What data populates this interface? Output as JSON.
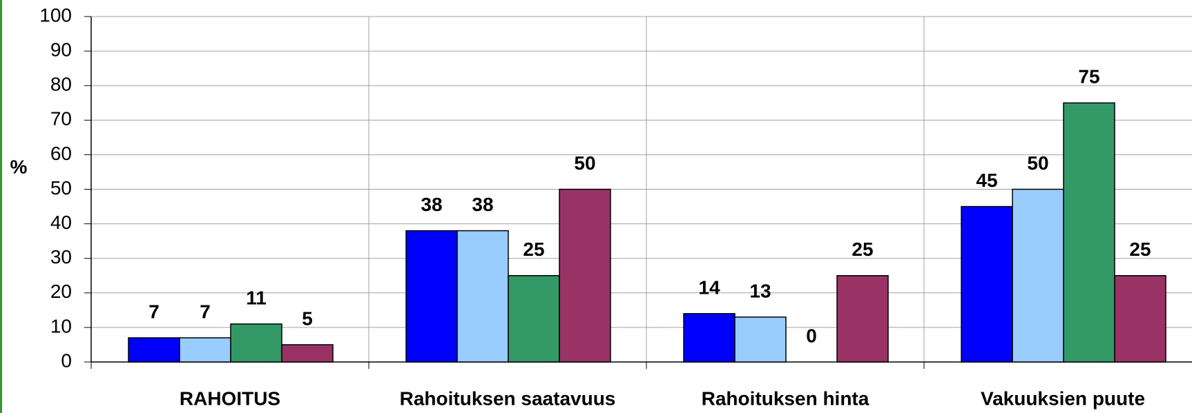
{
  "chart_data": {
    "type": "bar",
    "y_label": "%",
    "categories": [
      "RAHOITUS",
      "Rahoituksen saatavuus",
      "Rahoituksen hinta",
      "Vakuuksien puute"
    ],
    "series": [
      {
        "color": "#0000ff",
        "values": [
          7,
          38,
          14,
          45
        ]
      },
      {
        "color": "#99ccff",
        "values": [
          7,
          38,
          13,
          50
        ]
      },
      {
        "color": "#339966",
        "values": [
          11,
          25,
          0,
          75
        ]
      },
      {
        "color": "#993366",
        "values": [
          5,
          50,
          25,
          25
        ]
      }
    ],
    "ylim": [
      0,
      100
    ],
    "yticks": [
      0,
      10,
      20,
      30,
      40,
      50,
      60,
      70,
      80,
      90,
      100
    ],
    "grid": true
  }
}
